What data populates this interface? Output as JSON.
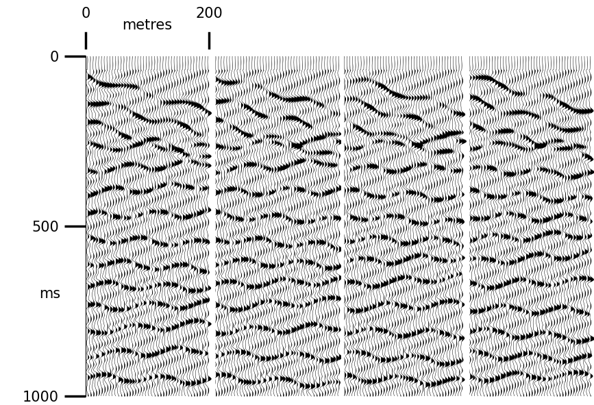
{
  "chart_data": {
    "type": "seismic_section",
    "y_label": "ms",
    "ylim": [
      0,
      1000
    ],
    "yticks": [
      0,
      500,
      1000
    ],
    "xlim": [
      0,
      824
    ],
    "scale_bar": {
      "ticks": [
        0,
        200
      ],
      "label": "metres"
    },
    "tick_labels": "y"
  }
}
